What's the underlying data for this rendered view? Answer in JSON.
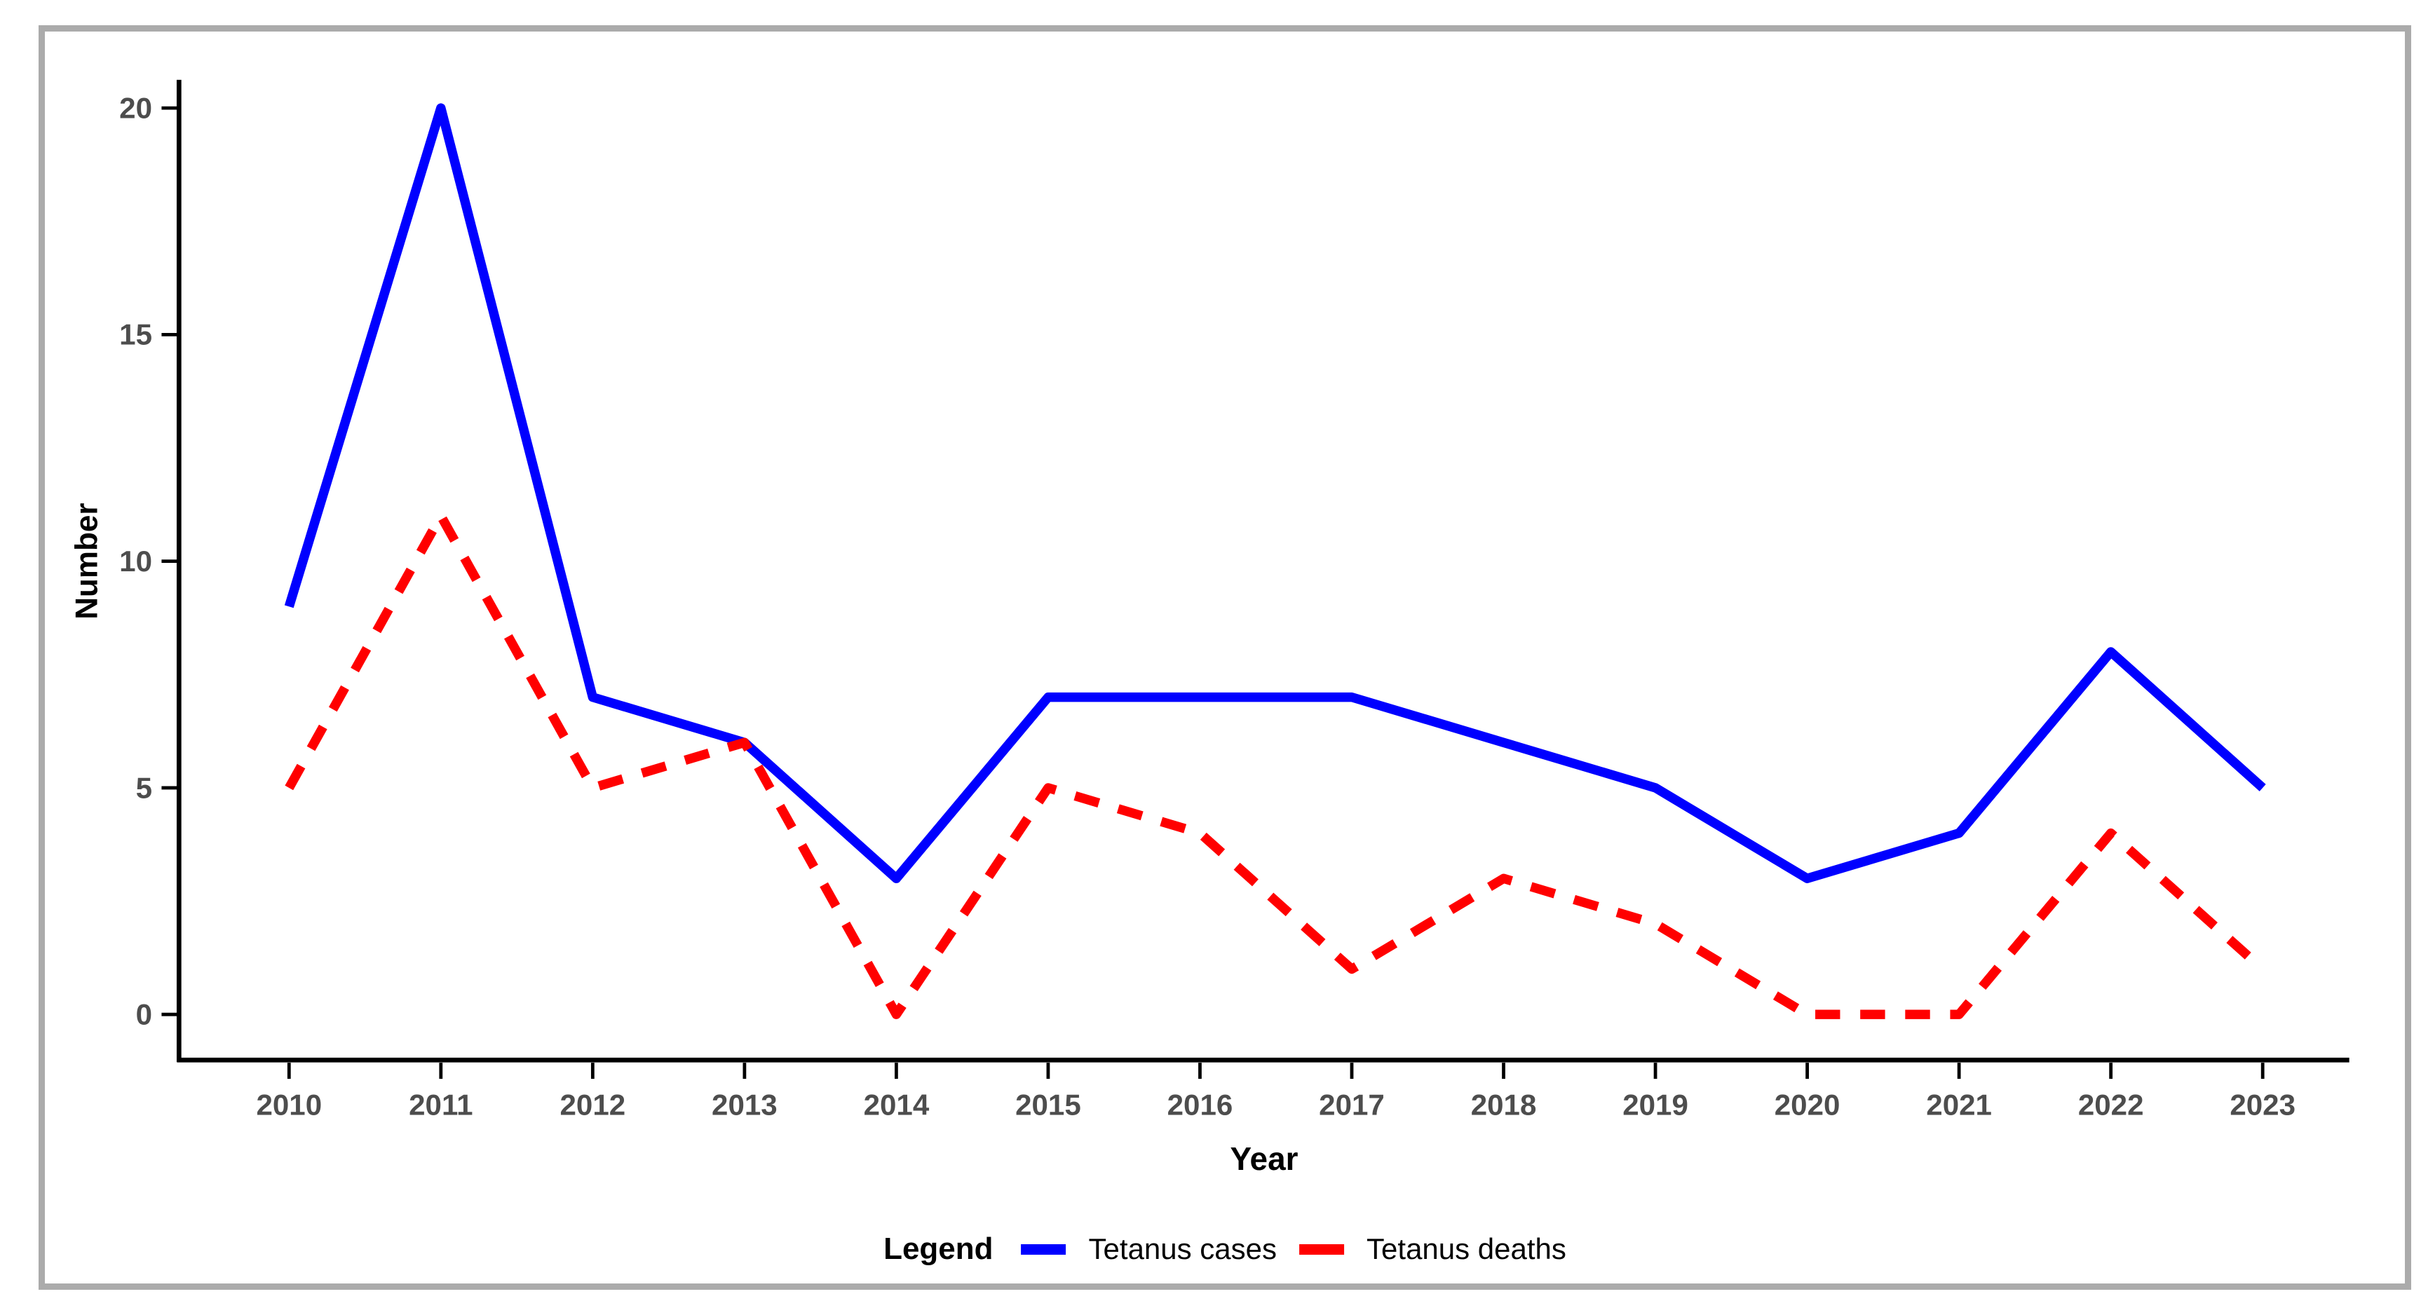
{
  "chart_data": {
    "type": "line",
    "title": "",
    "categories": [
      "2010",
      "2011",
      "2012",
      "2013",
      "2014",
      "2015",
      "2016",
      "2017",
      "2018",
      "2019",
      "2020",
      "2021",
      "2022",
      "2023"
    ],
    "series": [
      {
        "name": "Tetanus cases",
        "color": "#0000ff",
        "line_style": "solid",
        "values": [
          9,
          20,
          7,
          6,
          3,
          7,
          7,
          7,
          6,
          5,
          3,
          4,
          8,
          5
        ]
      },
      {
        "name": "Tetanus deaths",
        "color": "#ff0000",
        "line_style": "dashed",
        "values": [
          5,
          11,
          5,
          6,
          0,
          5,
          4,
          1,
          3,
          2,
          0,
          0,
          4,
          1
        ]
      }
    ],
    "xlabel": "Year",
    "ylabel": "Number",
    "ylim": [
      0,
      20
    ],
    "yticks": [
      0,
      5,
      10,
      15,
      20
    ],
    "grid": false,
    "legend_position": "bottom",
    "legend_title": "Legend"
  },
  "style": {
    "axis_color": "#000000",
    "tick_label_color": "#4d4d4d",
    "axis_title_color": "#000000",
    "frame_border_color": "#ababab",
    "background": "#ffffff"
  }
}
